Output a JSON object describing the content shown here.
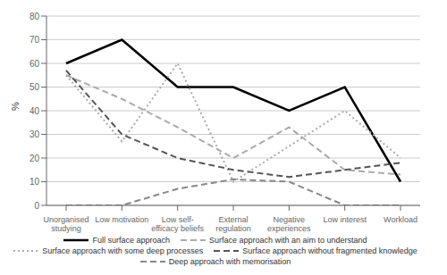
{
  "chart_data": {
    "type": "line",
    "categories": [
      "Unorganised\nstudying",
      "Low motivation",
      "Low self-\nefficacy beliefs",
      "External\nregulation",
      "Negative\nexperiences",
      "Low interest",
      "Workload"
    ],
    "series": [
      {
        "name": "Full surface approach",
        "color": "#000000",
        "line_style": "solid",
        "values": [
          60,
          70,
          50,
          50,
          40,
          50,
          10
        ]
      },
      {
        "name": "Surface approach with an aim to understand",
        "color": "#aaaaaa",
        "line_style": "dashed",
        "values": [
          55,
          45,
          33,
          20,
          33,
          15,
          13
        ]
      },
      {
        "name": "Surface approach with some deep processes",
        "color": "#aaaaaa",
        "line_style": "dotted",
        "values": [
          55,
          27,
          60,
          10,
          25,
          40,
          20
        ]
      },
      {
        "name": "Surface approach without fragmented knowledge",
        "color": "#555555",
        "line_style": "dashed",
        "values": [
          57,
          30,
          20,
          15,
          12,
          15,
          18
        ]
      },
      {
        "name": "Deep approach with memorisation",
        "color": "#888888",
        "line_style": "dashed",
        "values": [
          0,
          0,
          7,
          11,
          10,
          0,
          0
        ]
      }
    ],
    "ylabel": "%",
    "ylim": [
      0,
      80
    ],
    "yticks": [
      0,
      10,
      20,
      30,
      40,
      50,
      60,
      70,
      80
    ],
    "grid": true,
    "legend": "bottom"
  }
}
